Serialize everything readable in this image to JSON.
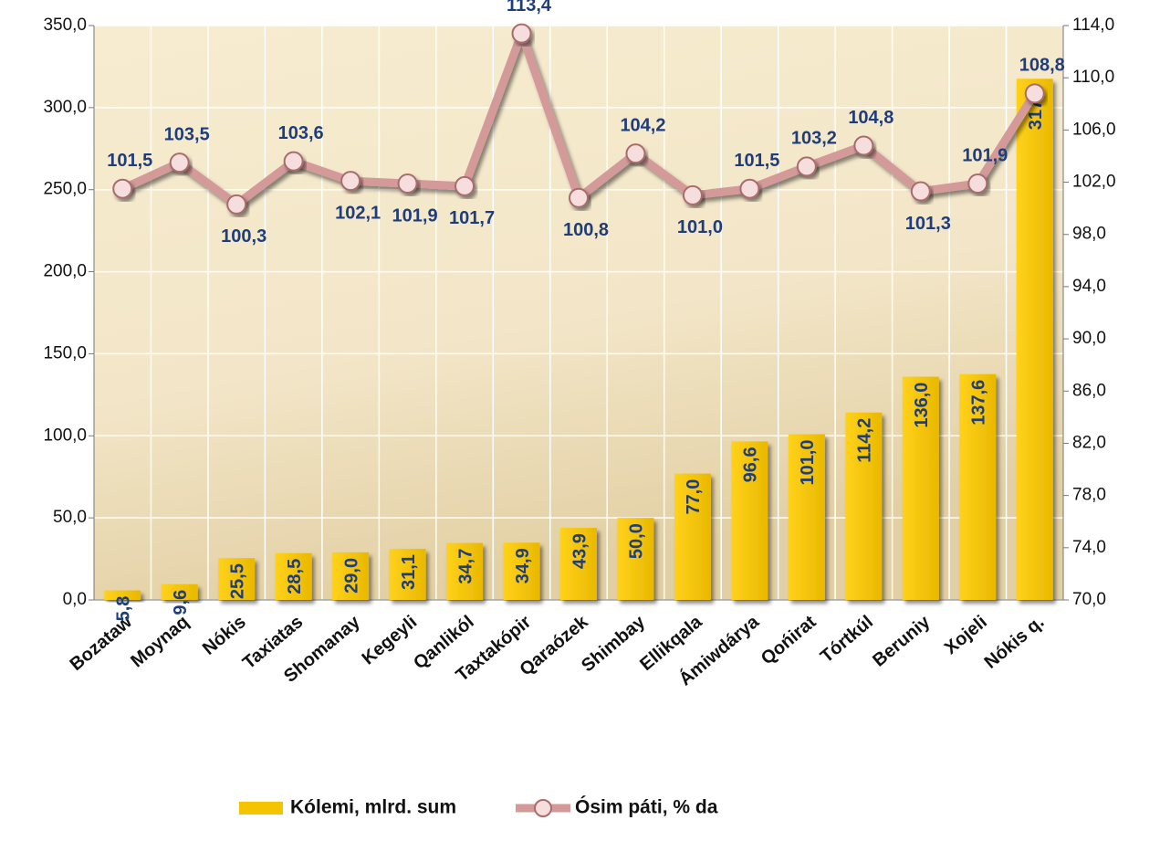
{
  "chart_data": {
    "type": "combo",
    "categories": [
      "Bozataw",
      "Moynaq",
      "Nókis",
      "Taxiatas",
      "Shomanay",
      "Kegeyli",
      "Qanlikól",
      "Taxtakópir",
      "Qaraózek",
      "Shimbay",
      "Ellikqala",
      "Ámiwdárya",
      "Qońirat",
      "Tórtkúl",
      "Beruniy",
      "Xojeli",
      "Nókis q."
    ],
    "series": [
      {
        "name": "Kólemi, mlrd. sum",
        "type": "bar",
        "color": "#f5c400",
        "values": [
          5.8,
          9.6,
          25.5,
          28.5,
          29.0,
          31.1,
          34.7,
          34.9,
          43.9,
          50.0,
          77.0,
          96.6,
          101.0,
          114.2,
          136.0,
          137.6,
          317.6
        ],
        "value_labels": [
          "5,8",
          "9,6",
          "25,5",
          "28,5",
          "29,0",
          "31,1",
          "34,7",
          "34,9",
          "43,9",
          "50,0",
          "77,0",
          "96,6",
          "101,0",
          "114,2",
          "136,0",
          "137,6",
          "317,6"
        ]
      },
      {
        "name": "Ósim páti, % da",
        "type": "line",
        "axis": "y2",
        "color": "#d49a9a",
        "values": [
          101.5,
          103.5,
          100.3,
          103.6,
          102.1,
          101.9,
          101.7,
          113.4,
          100.8,
          104.2,
          101.0,
          101.5,
          103.2,
          104.8,
          101.3,
          101.9,
          108.8
        ],
        "value_labels": [
          "101,5",
          "103,5",
          "100,3",
          "103,6",
          "102,1",
          "101,9",
          "101,7",
          "113,4",
          "100,8",
          "104,2",
          "101,0",
          "101,5",
          "103,2",
          "104,8",
          "101,3",
          "101,9",
          "108,8"
        ]
      }
    ],
    "ylim": [
      0,
      350
    ],
    "yticks": [
      {
        "value": 0,
        "label": "0,0"
      },
      {
        "value": 50,
        "label": "50,0"
      },
      {
        "value": 100,
        "label": "100,0"
      },
      {
        "value": 150,
        "label": "150,0"
      },
      {
        "value": 200,
        "label": "200,0"
      },
      {
        "value": 250,
        "label": "250,0"
      },
      {
        "value": 300,
        "label": "300,0"
      },
      {
        "value": 350,
        "label": "350,0"
      }
    ],
    "y2lim": [
      70,
      114
    ],
    "y2ticks": [
      {
        "value": 70,
        "label": "70,0"
      },
      {
        "value": 74,
        "label": "74,0"
      },
      {
        "value": 78,
        "label": "78,0"
      },
      {
        "value": 82,
        "label": "82,0"
      },
      {
        "value": 86,
        "label": "86,0"
      },
      {
        "value": 90,
        "label": "90,0"
      },
      {
        "value": 94,
        "label": "94,0"
      },
      {
        "value": 98,
        "label": "98,0"
      },
      {
        "value": 102,
        "label": "102,0"
      },
      {
        "value": 106,
        "label": "106,0"
      },
      {
        "value": 110,
        "label": "110,0"
      },
      {
        "value": 114,
        "label": "114,0"
      }
    ],
    "grid": true,
    "legend": "bottom"
  }
}
